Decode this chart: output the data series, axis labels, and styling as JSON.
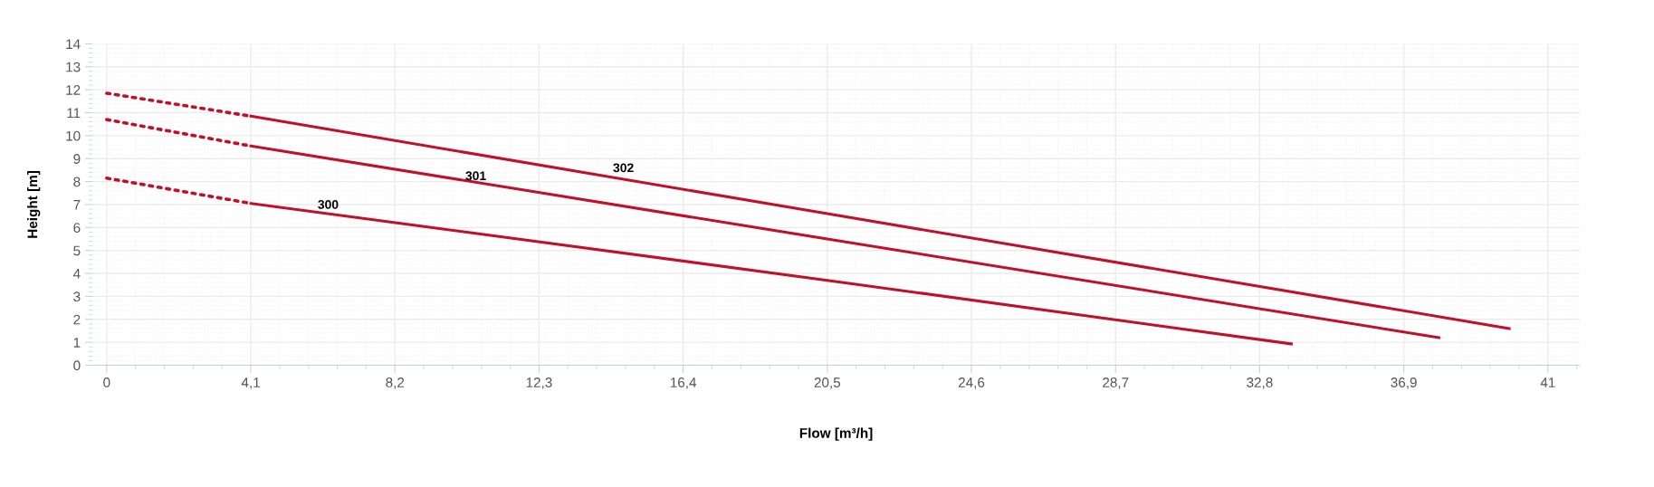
{
  "chart_data": {
    "type": "line",
    "xlabel": "Flow [m³/h]",
    "ylabel": "Height [m]",
    "xlim": [
      -0.4,
      41.9
    ],
    "ylim": [
      0,
      14
    ],
    "xticks": [
      0,
      {
        "value": 4.1,
        "label": "4,1"
      },
      {
        "value": 8.2,
        "label": "8,2"
      },
      {
        "value": 12.3,
        "label": "12,3"
      },
      {
        "value": 16.4,
        "label": "16,4"
      },
      {
        "value": 20.5,
        "label": "20,5"
      },
      {
        "value": 24.6,
        "label": "24,6"
      },
      {
        "value": 28.7,
        "label": "28,7"
      },
      {
        "value": 32.8,
        "label": "32,8"
      },
      {
        "value": 36.9,
        "label": "36,9"
      },
      41
    ],
    "yticks": [
      0,
      1,
      2,
      3,
      4,
      5,
      6,
      7,
      8,
      9,
      10,
      11,
      12,
      13,
      14
    ],
    "grid": true,
    "marker": "none",
    "series": [
      {
        "color": "#c0102a",
        "line_style": "dotted",
        "x": [
          0,
          4.1
        ],
        "values": [
          8.15,
          7.05
        ]
      },
      {
        "color": "#c0102a",
        "line_style": "solid",
        "x": [
          4.1,
          20.5,
          33.7
        ],
        "values": [
          7.05,
          3.7,
          0.93
        ]
      },
      {
        "color": "#c0102a",
        "line_style": "dotted",
        "x": [
          0,
          4.1
        ],
        "values": [
          10.7,
          9.55
        ]
      },
      {
        "color": "#c0102a",
        "line_style": "solid",
        "x": [
          4.1,
          20.5,
          37.9
        ],
        "values": [
          9.55,
          5.5,
          1.2
        ]
      },
      {
        "color": "#c0102a",
        "line_style": "dotted",
        "x": [
          0,
          4.1
        ],
        "values": [
          11.85,
          10.85
        ]
      },
      {
        "color": "#c0102a",
        "line_style": "solid",
        "x": [
          4.1,
          20.5,
          39.9
        ],
        "values": [
          10.85,
          6.6,
          1.6
        ]
      }
    ],
    "annotations": [
      {
        "text": "300",
        "x": 6.3,
        "y": 6.7
      },
      {
        "text": "301",
        "x": 10.5,
        "y": 7.95
      },
      {
        "text": "302",
        "x": 14.7,
        "y": 8.3
      }
    ]
  }
}
